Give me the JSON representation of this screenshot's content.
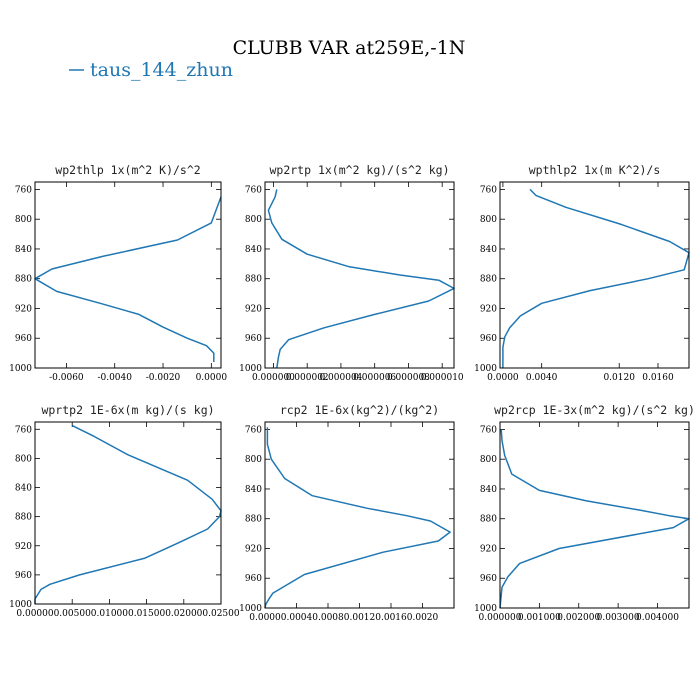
{
  "figure": {
    "title": "CLUBB VAR at259E,-1N",
    "legend": [
      {
        "label": "taus_144_zhun",
        "color": "#1f77b4"
      }
    ]
  },
  "chart_data": [
    {
      "type": "line",
      "title": "wp2thlp  1x(m^2 K)/s^2",
      "ylim": [
        1000,
        750
      ],
      "yticks": [
        760,
        800,
        840,
        880,
        920,
        960,
        1000
      ],
      "ytick_labels": [
        "760",
        "800",
        "840",
        "880",
        "920",
        "960",
        "1000"
      ],
      "xlim": [
        -0.0073,
        0.0004
      ],
      "xticks": [
        -0.006,
        -0.004,
        -0.002,
        0.0
      ],
      "xtick_labels": [
        "-0.0060",
        "-0.0040",
        "-0.0020",
        "0.0000"
      ],
      "series": [
        {
          "color": "#1f77b4",
          "x": [
            0.0004,
            0.0,
            -0.0014,
            -0.0045,
            -0.0066,
            -0.0073,
            -0.0064,
            -0.0046,
            -0.003,
            -0.002,
            -0.001,
            -0.0002,
            0.0001,
            0.0001
          ],
          "y": [
            770,
            805,
            828,
            850,
            867,
            880,
            897,
            913,
            928,
            945,
            960,
            970,
            980,
            992
          ]
        }
      ]
    },
    {
      "type": "line",
      "title": "wp2rtp  1x(m^2 kg)/(s^2 kg)",
      "ylim": [
        1000,
        750
      ],
      "yticks": [
        760,
        800,
        840,
        880,
        920,
        960,
        1000
      ],
      "ytick_labels": [
        "760",
        "800",
        "840",
        "880",
        "920",
        "960",
        "1000"
      ],
      "xlim": [
        -5e-07,
        1.07e-05
      ],
      "xticks": [
        0.0,
        2e-06,
        4e-06,
        6e-06,
        8e-06,
        1e-05
      ],
      "xtick_labels": [
        "0.000000",
        "0.000002",
        "0.000004",
        "0.000006",
        "0.000008",
        "0.000010"
      ],
      "series": [
        {
          "color": "#1f77b4",
          "x": [
            2e-07,
            1e-07,
            -3e-07,
            -1e-07,
            5e-07,
            2e-06,
            4.5e-06,
            7.5e-06,
            9.8e-06,
            1.07e-05,
            9.2e-06,
            6e-06,
            3e-06,
            9e-07,
            4e-07,
            3e-07,
            2e-07
          ],
          "y": [
            760,
            770,
            788,
            805,
            827,
            847,
            864,
            875,
            882,
            893,
            910,
            928,
            946,
            962,
            975,
            985,
            1000
          ]
        }
      ]
    },
    {
      "type": "line",
      "title": "wpthlp2  1x(m K^2)/s",
      "ylim": [
        1000,
        750
      ],
      "yticks": [
        760,
        800,
        840,
        880,
        920,
        960,
        1000
      ],
      "ytick_labels": [
        "760",
        "800",
        "840",
        "880",
        "920",
        "960",
        "1000"
      ],
      "xlim": [
        -0.0003,
        0.0192
      ],
      "xticks": [
        0.0,
        0.004,
        0.012,
        0.016
      ],
      "xtick_labels": [
        "0.0000",
        "0.0040",
        "0.0120",
        "0.0160"
      ],
      "series": [
        {
          "color": "#1f77b4",
          "x": [
            0.0028,
            0.0034,
            0.0065,
            0.0122,
            0.0172,
            0.0192,
            0.0187,
            0.015,
            0.009,
            0.004,
            0.0018,
            0.0007,
            0.0002,
            0.0,
            0.0
          ],
          "y": [
            760,
            768,
            784,
            807,
            830,
            845,
            868,
            880,
            896,
            913,
            930,
            946,
            958,
            972,
            1000
          ]
        }
      ]
    },
    {
      "type": "line",
      "title": "wprtp2  1E-6x(m kg)/(s kg)",
      "ylim": [
        1000,
        750
      ],
      "yticks": [
        760,
        800,
        840,
        880,
        920,
        960,
        1000
      ],
      "ytick_labels": [
        "760",
        "800",
        "840",
        "880",
        "920",
        "960",
        "1000"
      ],
      "xlim": [
        0.0,
        0.025
      ],
      "xticks": [
        0.0,
        0.005,
        0.01,
        0.015,
        0.02,
        0.025
      ],
      "xtick_labels": [
        "0.00000",
        "0.00500",
        "0.01000",
        "0.01500",
        "0.02000",
        "0.02500"
      ],
      "series": [
        {
          "color": "#1f77b4",
          "x": [
            0.005,
            0.008,
            0.0125,
            0.0205,
            0.0238,
            0.025,
            0.0248,
            0.0232,
            0.0195,
            0.0148,
            0.006,
            0.002,
            0.0008,
            0.0,
            0.0
          ],
          "y": [
            755,
            770,
            795,
            830,
            856,
            872,
            880,
            897,
            915,
            937,
            960,
            973,
            980,
            993,
            1000
          ]
        }
      ]
    },
    {
      "type": "line",
      "title": "rcp2  1E-6x(kg^2)/(kg^2)",
      "ylim": [
        1000,
        750
      ],
      "yticks": [
        760,
        800,
        840,
        880,
        920,
        960,
        1000
      ],
      "ytick_labels": [
        "760",
        "800",
        "840",
        "880",
        "920",
        "960",
        "1000"
      ],
      "xlim": [
        0.0,
        0.0024
      ],
      "xticks": [
        0.0,
        0.0004,
        0.0008,
        0.0012,
        0.0016,
        0.002
      ],
      "xtick_labels": [
        "0.0000",
        "0.0004",
        "0.0008",
        "0.0012",
        "0.0016",
        "0.0020"
      ],
      "series": [
        {
          "color": "#1f77b4",
          "x": [
            3e-05,
            3e-05,
            8e-05,
            0.00025,
            0.0006,
            0.0013,
            0.0018,
            0.0021,
            0.00235,
            0.0022,
            0.0015,
            0.0005,
            0.0001,
            5e-05,
            1e-05,
            0.0
          ],
          "y": [
            757,
            780,
            800,
            826,
            849,
            866,
            876,
            883,
            898,
            910,
            925,
            955,
            980,
            988,
            995,
            1000
          ]
        }
      ]
    },
    {
      "type": "line",
      "title": "wp2rcp  1E-3x(m^2 kg)/(s^2 kg)",
      "ylim": [
        1000,
        750
      ],
      "yticks": [
        760,
        800,
        840,
        880,
        920,
        960,
        1000
      ],
      "ytick_labels": [
        "760",
        "800",
        "840",
        "880",
        "920",
        "960",
        "1000"
      ],
      "xlim": [
        0.0,
        0.0048
      ],
      "xticks": [
        0.0,
        0.001,
        0.002,
        0.003,
        0.004
      ],
      "xtick_labels": [
        "0.000000",
        "0.001000",
        "0.002000",
        "0.003000",
        "0.004000"
      ],
      "series": [
        {
          "color": "#1f77b4",
          "x": [
            3e-05,
            5e-05,
            0.00012,
            0.0003,
            0.001,
            0.0022,
            0.0035,
            0.0043,
            0.0048,
            0.0044,
            0.0015,
            0.0005,
            0.0002,
            5e-05,
            0.0
          ],
          "y": [
            760,
            775,
            795,
            820,
            842,
            856,
            868,
            876,
            880,
            892,
            920,
            940,
            958,
            972,
            1000
          ]
        }
      ]
    }
  ]
}
